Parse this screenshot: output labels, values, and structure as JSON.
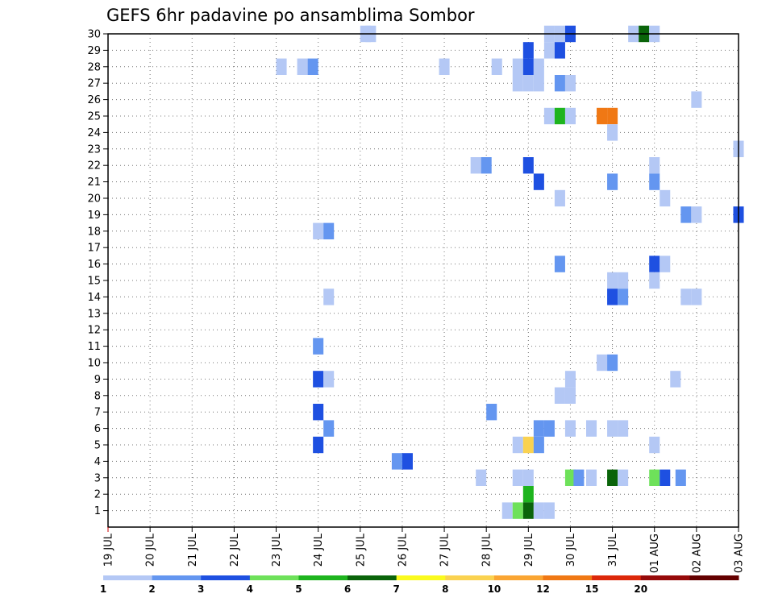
{
  "chart_data": {
    "type": "heatmap",
    "title": "GEFS 6hr padavine po ansamblima Sombor",
    "xlabel": "",
    "ylabel": "",
    "x_tick_labels": [
      "19 JUL",
      "20 JUL",
      "21 JUL",
      "22 JUL",
      "23 JUL",
      "24 JUL",
      "25 JUL",
      "26 JUL",
      "27 JUL",
      "28 JUL",
      "29 JUL",
      "30 JUL",
      "31 JUL",
      "01 AUG",
      "02 AUG",
      "03 AUG"
    ],
    "y_tick_labels": [
      "1",
      "2",
      "3",
      "4",
      "5",
      "6",
      "7",
      "8",
      "9",
      "10",
      "11",
      "12",
      "13",
      "14",
      "15",
      "16",
      "17",
      "18",
      "19",
      "20",
      "21",
      "22",
      "23",
      "24",
      "25",
      "26",
      "27",
      "28",
      "29",
      "30"
    ],
    "xlim": [
      0,
      60
    ],
    "ylim": [
      0,
      30
    ],
    "grid": true,
    "colorbar": {
      "ticks": [
        "1",
        "2",
        "3",
        "4",
        "5",
        "6",
        "7",
        "8",
        "10",
        "12",
        "15",
        "20"
      ],
      "colors": [
        "#b4c8f5",
        "#6496f0",
        "#1e50e1",
        "#6ee15a",
        "#1eb41e",
        "#0a640a",
        "#fafa1e",
        "#fad250",
        "#faa532",
        "#f07814",
        "#dc280a",
        "#960a0a",
        "#640000"
      ]
    },
    "cells_note_x": "x index = 6-hour step since 19 JUL 00Z; y = ensemble member",
    "cells": [
      {
        "x": 24.5,
        "y": 30,
        "v": 1
      },
      {
        "x": 25,
        "y": 30,
        "v": 1
      },
      {
        "x": 42,
        "y": 30,
        "v": 1
      },
      {
        "x": 43,
        "y": 30,
        "v": 1
      },
      {
        "x": 44,
        "y": 30,
        "v": 3
      },
      {
        "x": 50,
        "y": 30,
        "v": 1
      },
      {
        "x": 51,
        "y": 30,
        "v": 6
      },
      {
        "x": 52,
        "y": 30,
        "v": 1
      },
      {
        "x": 40,
        "y": 29,
        "v": 3
      },
      {
        "x": 42,
        "y": 29,
        "v": 1
      },
      {
        "x": 43,
        "y": 29,
        "v": 3
      },
      {
        "x": 16.5,
        "y": 28,
        "v": 1
      },
      {
        "x": 18.5,
        "y": 28,
        "v": 1
      },
      {
        "x": 19.5,
        "y": 28,
        "v": 2
      },
      {
        "x": 32,
        "y": 28,
        "v": 1
      },
      {
        "x": 37,
        "y": 28,
        "v": 1
      },
      {
        "x": 39,
        "y": 28,
        "v": 1
      },
      {
        "x": 40,
        "y": 28,
        "v": 3
      },
      {
        "x": 41,
        "y": 28,
        "v": 1
      },
      {
        "x": 39,
        "y": 27,
        "v": 1
      },
      {
        "x": 40,
        "y": 27,
        "v": 1
      },
      {
        "x": 41,
        "y": 27,
        "v": 1
      },
      {
        "x": 43,
        "y": 27,
        "v": 2
      },
      {
        "x": 44,
        "y": 27,
        "v": 1
      },
      {
        "x": 56,
        "y": 26,
        "v": 1
      },
      {
        "x": 42,
        "y": 25,
        "v": 1
      },
      {
        "x": 43,
        "y": 25,
        "v": 5
      },
      {
        "x": 44,
        "y": 25,
        "v": 1
      },
      {
        "x": 47,
        "y": 25,
        "v": 13
      },
      {
        "x": 48,
        "y": 25,
        "v": 13
      },
      {
        "x": 48,
        "y": 24,
        "v": 1
      },
      {
        "x": 60,
        "y": 23,
        "v": 1
      },
      {
        "x": 35,
        "y": 22,
        "v": 1
      },
      {
        "x": 36,
        "y": 22,
        "v": 2
      },
      {
        "x": 40,
        "y": 22,
        "v": 3
      },
      {
        "x": 52,
        "y": 22,
        "v": 1
      },
      {
        "x": 41,
        "y": 21,
        "v": 3
      },
      {
        "x": 48,
        "y": 21,
        "v": 2
      },
      {
        "x": 52,
        "y": 21,
        "v": 2
      },
      {
        "x": 43,
        "y": 20,
        "v": 1
      },
      {
        "x": 53,
        "y": 20,
        "v": 1
      },
      {
        "x": 55,
        "y": 19,
        "v": 2
      },
      {
        "x": 56,
        "y": 19,
        "v": 1
      },
      {
        "x": 60,
        "y": 19,
        "v": 3
      },
      {
        "x": 20,
        "y": 18,
        "v": 1
      },
      {
        "x": 21,
        "y": 18,
        "v": 2
      },
      {
        "x": 43,
        "y": 16,
        "v": 2
      },
      {
        "x": 52,
        "y": 16,
        "v": 3
      },
      {
        "x": 53,
        "y": 16,
        "v": 1
      },
      {
        "x": 48,
        "y": 15,
        "v": 1
      },
      {
        "x": 49,
        "y": 15,
        "v": 1
      },
      {
        "x": 52,
        "y": 15,
        "v": 1
      },
      {
        "x": 48,
        "y": 14,
        "v": 3
      },
      {
        "x": 49,
        "y": 14,
        "v": 2
      },
      {
        "x": 21,
        "y": 14,
        "v": 1
      },
      {
        "x": 55,
        "y": 14,
        "v": 1
      },
      {
        "x": 56,
        "y": 14,
        "v": 1
      },
      {
        "x": 20,
        "y": 11,
        "v": 2
      },
      {
        "x": 47,
        "y": 10,
        "v": 1
      },
      {
        "x": 48,
        "y": 10,
        "v": 2
      },
      {
        "x": 20,
        "y": 9,
        "v": 3
      },
      {
        "x": 21,
        "y": 9,
        "v": 1
      },
      {
        "x": 44,
        "y": 9,
        "v": 1
      },
      {
        "x": 54,
        "y": 9,
        "v": 1
      },
      {
        "x": 43,
        "y": 8,
        "v": 1
      },
      {
        "x": 44,
        "y": 8,
        "v": 1
      },
      {
        "x": 20,
        "y": 7,
        "v": 3
      },
      {
        "x": 36.5,
        "y": 7,
        "v": 2
      },
      {
        "x": 21,
        "y": 6,
        "v": 2
      },
      {
        "x": 41,
        "y": 6,
        "v": 2
      },
      {
        "x": 42,
        "y": 6,
        "v": 2
      },
      {
        "x": 44,
        "y": 6,
        "v": 1
      },
      {
        "x": 46,
        "y": 6,
        "v": 1
      },
      {
        "x": 48,
        "y": 6,
        "v": 1
      },
      {
        "x": 49,
        "y": 6,
        "v": 1
      },
      {
        "x": 20,
        "y": 5,
        "v": 3
      },
      {
        "x": 39,
        "y": 5,
        "v": 1
      },
      {
        "x": 40,
        "y": 5,
        "v": 9
      },
      {
        "x": 41,
        "y": 5,
        "v": 2
      },
      {
        "x": 52,
        "y": 5,
        "v": 1
      },
      {
        "x": 27.5,
        "y": 4,
        "v": 2
      },
      {
        "x": 28.5,
        "y": 4,
        "v": 3
      },
      {
        "x": 35.5,
        "y": 3,
        "v": 1
      },
      {
        "x": 39,
        "y": 3,
        "v": 1
      },
      {
        "x": 40,
        "y": 3,
        "v": 1
      },
      {
        "x": 44,
        "y": 3,
        "v": 4
      },
      {
        "x": 44.8,
        "y": 3,
        "v": 2
      },
      {
        "x": 46,
        "y": 3,
        "v": 1
      },
      {
        "x": 48,
        "y": 3,
        "v": 6
      },
      {
        "x": 49,
        "y": 3,
        "v": 1
      },
      {
        "x": 52,
        "y": 3,
        "v": 4
      },
      {
        "x": 53,
        "y": 3,
        "v": 3
      },
      {
        "x": 54.5,
        "y": 3,
        "v": 2
      },
      {
        "x": 40,
        "y": 2,
        "v": 5
      },
      {
        "x": 38,
        "y": 1,
        "v": 1
      },
      {
        "x": 39,
        "y": 1,
        "v": 4
      },
      {
        "x": 40,
        "y": 1,
        "v": 6
      },
      {
        "x": 41,
        "y": 1,
        "v": 1
      },
      {
        "x": 42,
        "y": 1,
        "v": 1
      }
    ]
  }
}
